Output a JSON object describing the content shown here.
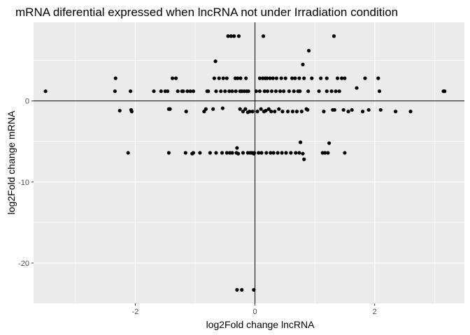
{
  "chart_data": {
    "type": "scatter",
    "title": "mRNA diferential expressed when lncRNA not under Irradiation condition",
    "xlabel": "log2Fold change lncRNA",
    "ylabel": "log2Fold change mRNA",
    "xlim": [
      -3.7,
      3.5
    ],
    "ylim": [
      -25.0,
      9.7
    ],
    "xticks": [
      -2,
      0,
      2
    ],
    "yticks": [
      -20,
      -10,
      0
    ],
    "xtick_labels": [
      "-2",
      "0",
      "2"
    ],
    "ytick_labels": [
      "-20",
      "-10",
      "0"
    ],
    "grid": true,
    "reference_lines": {
      "x": 0,
      "y": 0
    },
    "colors": {
      "panel": "#ebebeb",
      "grid": "#ffffff",
      "points": "#000000",
      "reference": "#000000"
    },
    "points": [
      {
        "x": -3.5,
        "y": 1.2
      },
      {
        "x": -2.33,
        "y": 2.8
      },
      {
        "x": -2.34,
        "y": 1.2
      },
      {
        "x": -2.26,
        "y": -1.2
      },
      {
        "x": -2.12,
        "y": -6.4
      },
      {
        "x": -2.08,
        "y": 1.2
      },
      {
        "x": -2.07,
        "y": -1.1
      },
      {
        "x": -2.06,
        "y": -1.3
      },
      {
        "x": -1.69,
        "y": 1.2
      },
      {
        "x": -1.57,
        "y": 1.2
      },
      {
        "x": -1.5,
        "y": 1.2
      },
      {
        "x": -1.46,
        "y": 1.2
      },
      {
        "x": -1.44,
        "y": -1.0
      },
      {
        "x": -1.42,
        "y": -1.0
      },
      {
        "x": -1.44,
        "y": -6.4
      },
      {
        "x": -1.38,
        "y": 2.8
      },
      {
        "x": -1.32,
        "y": 2.8
      },
      {
        "x": -1.29,
        "y": 1.2
      },
      {
        "x": -1.22,
        "y": 1.2
      },
      {
        "x": -1.2,
        "y": 1.2
      },
      {
        "x": -1.16,
        "y": -6.4
      },
      {
        "x": -1.15,
        "y": -1.3
      },
      {
        "x": -1.13,
        "y": 1.2
      },
      {
        "x": -1.08,
        "y": 1.2
      },
      {
        "x": -1.05,
        "y": -6.5
      },
      {
        "x": -1.03,
        "y": -6.4
      },
      {
        "x": -1.03,
        "y": 1.2
      },
      {
        "x": -0.92,
        "y": -6.4
      },
      {
        "x": -0.85,
        "y": -1.3
      },
      {
        "x": -0.82,
        "y": -1.0
      },
      {
        "x": -0.8,
        "y": 1.2
      },
      {
        "x": -0.78,
        "y": 1.2
      },
      {
        "x": -0.75,
        "y": -6.4
      },
      {
        "x": -0.7,
        "y": -1.0
      },
      {
        "x": -0.68,
        "y": 2.8
      },
      {
        "x": -0.66,
        "y": 4.9
      },
      {
        "x": -0.65,
        "y": 1.2
      },
      {
        "x": -0.65,
        "y": -6.4
      },
      {
        "x": -0.6,
        "y": 2.8
      },
      {
        "x": -0.57,
        "y": 1.2
      },
      {
        "x": -0.55,
        "y": -6.4
      },
      {
        "x": -0.54,
        "y": -0.9
      },
      {
        "x": -0.53,
        "y": 2.8
      },
      {
        "x": -0.5,
        "y": 1.2
      },
      {
        "x": -0.47,
        "y": 2.8
      },
      {
        "x": -0.47,
        "y": -6.4
      },
      {
        "x": -0.45,
        "y": 8.0
      },
      {
        "x": -0.43,
        "y": 1.2
      },
      {
        "x": -0.42,
        "y": -6.4
      },
      {
        "x": -0.4,
        "y": 8.0
      },
      {
        "x": -0.38,
        "y": 1.2
      },
      {
        "x": -0.38,
        "y": -6.4
      },
      {
        "x": -0.35,
        "y": 8.0
      },
      {
        "x": -0.33,
        "y": 2.8
      },
      {
        "x": -0.32,
        "y": 1.2
      },
      {
        "x": -0.31,
        "y": -6.4
      },
      {
        "x": -0.3,
        "y": -5.8
      },
      {
        "x": -0.29,
        "y": 2.8
      },
      {
        "x": -0.28,
        "y": -6.5
      },
      {
        "x": -0.3,
        "y": -23.3
      },
      {
        "x": -0.27,
        "y": 8.0
      },
      {
        "x": -0.25,
        "y": 1.2
      },
      {
        "x": -0.25,
        "y": -1.0
      },
      {
        "x": -0.24,
        "y": 2.8
      },
      {
        "x": -0.22,
        "y": 1.2
      },
      {
        "x": -0.2,
        "y": -6.4
      },
      {
        "x": -0.2,
        "y": -1.3
      },
      {
        "x": -0.18,
        "y": 1.2
      },
      {
        "x": -0.16,
        "y": -1.0
      },
      {
        "x": -0.15,
        "y": 2.8
      },
      {
        "x": -0.14,
        "y": 1.2
      },
      {
        "x": -0.12,
        "y": -6.4
      },
      {
        "x": -0.12,
        "y": -1.4
      },
      {
        "x": -0.11,
        "y": 1.2
      },
      {
        "x": -0.09,
        "y": -1.3
      },
      {
        "x": -0.08,
        "y": -6.4
      },
      {
        "x": -0.05,
        "y": -6.4
      },
      {
        "x": -0.22,
        "y": -23.3
      },
      {
        "x": -0.02,
        "y": -23.3
      },
      {
        "x": -0.04,
        "y": -1.3
      },
      {
        "x": -0.02,
        "y": -6.5
      },
      {
        "x": -0.01,
        "y": -6.4
      },
      {
        "x": 0.02,
        "y": 1.2
      },
      {
        "x": 0.04,
        "y": -1.3
      },
      {
        "x": 0.06,
        "y": -6.4
      },
      {
        "x": 0.08,
        "y": 1.2
      },
      {
        "x": 0.08,
        "y": 2.8
      },
      {
        "x": 0.1,
        "y": -1.0
      },
      {
        "x": 0.11,
        "y": -6.4
      },
      {
        "x": 0.13,
        "y": 2.8
      },
      {
        "x": 0.14,
        "y": 8.0
      },
      {
        "x": 0.15,
        "y": -1.3
      },
      {
        "x": 0.16,
        "y": 1.2
      },
      {
        "x": 0.17,
        "y": 2.8
      },
      {
        "x": 0.18,
        "y": -1.2
      },
      {
        "x": 0.19,
        "y": -6.4
      },
      {
        "x": 0.2,
        "y": 2.8
      },
      {
        "x": 0.21,
        "y": 1.2
      },
      {
        "x": 0.23,
        "y": -1.0
      },
      {
        "x": 0.25,
        "y": 2.8
      },
      {
        "x": 0.26,
        "y": -6.4
      },
      {
        "x": 0.27,
        "y": -1.3
      },
      {
        "x": 0.28,
        "y": 1.2
      },
      {
        "x": 0.3,
        "y": 2.8
      },
      {
        "x": 0.31,
        "y": -6.4
      },
      {
        "x": 0.33,
        "y": -1.3
      },
      {
        "x": 0.35,
        "y": 1.2
      },
      {
        "x": 0.36,
        "y": 2.8
      },
      {
        "x": 0.38,
        "y": -6.4
      },
      {
        "x": 0.4,
        "y": -1.0
      },
      {
        "x": 0.42,
        "y": 1.2
      },
      {
        "x": 0.44,
        "y": 2.8
      },
      {
        "x": 0.45,
        "y": -6.4
      },
      {
        "x": 0.46,
        "y": -1.3
      },
      {
        "x": 0.48,
        "y": 1.2
      },
      {
        "x": 0.51,
        "y": 2.8
      },
      {
        "x": 0.52,
        "y": -6.4
      },
      {
        "x": 0.55,
        "y": -1.3
      },
      {
        "x": 0.57,
        "y": 1.2
      },
      {
        "x": 0.6,
        "y": -6.4
      },
      {
        "x": 0.62,
        "y": 2.8
      },
      {
        "x": 0.63,
        "y": -1.3
      },
      {
        "x": 0.65,
        "y": 1.2
      },
      {
        "x": 0.67,
        "y": 2.8
      },
      {
        "x": 0.68,
        "y": -6.4
      },
      {
        "x": 0.7,
        "y": -1.3
      },
      {
        "x": 0.72,
        "y": 1.2
      },
      {
        "x": 0.74,
        "y": -6.4
      },
      {
        "x": 0.74,
        "y": 2.8
      },
      {
        "x": 0.75,
        "y": 1.2
      },
      {
        "x": 0.76,
        "y": -5.1
      },
      {
        "x": 0.8,
        "y": -6.5
      },
      {
        "x": 0.82,
        "y": -7.2
      },
      {
        "x": 0.78,
        "y": -1.3
      },
      {
        "x": 0.8,
        "y": 4.5
      },
      {
        "x": 0.82,
        "y": 2.8
      },
      {
        "x": 0.86,
        "y": -1.0
      },
      {
        "x": 0.88,
        "y": -1.1
      },
      {
        "x": 0.89,
        "y": 1.2
      },
      {
        "x": 0.9,
        "y": 6.2
      },
      {
        "x": 0.95,
        "y": 2.8
      },
      {
        "x": 1.07,
        "y": 1.2
      },
      {
        "x": 1.1,
        "y": 2.8
      },
      {
        "x": 1.13,
        "y": -6.4
      },
      {
        "x": 1.15,
        "y": -1.3
      },
      {
        "x": 1.17,
        "y": -6.4
      },
      {
        "x": 1.2,
        "y": 2.8
      },
      {
        "x": 1.2,
        "y": 1.2
      },
      {
        "x": 1.22,
        "y": -6.4
      },
      {
        "x": 1.24,
        "y": -5.2
      },
      {
        "x": 1.28,
        "y": 1.2
      },
      {
        "x": 1.3,
        "y": -1.1
      },
      {
        "x": 1.32,
        "y": 8.0
      },
      {
        "x": 1.33,
        "y": -1.1
      },
      {
        "x": 1.35,
        "y": 1.2
      },
      {
        "x": 1.38,
        "y": 2.8
      },
      {
        "x": 1.41,
        "y": 1.2
      },
      {
        "x": 1.45,
        "y": 2.8
      },
      {
        "x": 1.48,
        "y": -1.1
      },
      {
        "x": 1.5,
        "y": -6.4
      },
      {
        "x": 1.5,
        "y": 2.8
      },
      {
        "x": 1.56,
        "y": -1.3
      },
      {
        "x": 1.62,
        "y": -1.1
      },
      {
        "x": 1.7,
        "y": 1.6
      },
      {
        "x": 1.8,
        "y": -1.3
      },
      {
        "x": 1.84,
        "y": 2.8
      },
      {
        "x": 1.9,
        "y": -1.1
      },
      {
        "x": 2.06,
        "y": 2.8
      },
      {
        "x": 2.08,
        "y": 1.2
      },
      {
        "x": 2.1,
        "y": -1.1
      },
      {
        "x": 2.35,
        "y": -1.3
      },
      {
        "x": 2.6,
        "y": -1.3
      },
      {
        "x": 3.15,
        "y": 1.2
      },
      {
        "x": 3.17,
        "y": 1.2
      }
    ]
  }
}
